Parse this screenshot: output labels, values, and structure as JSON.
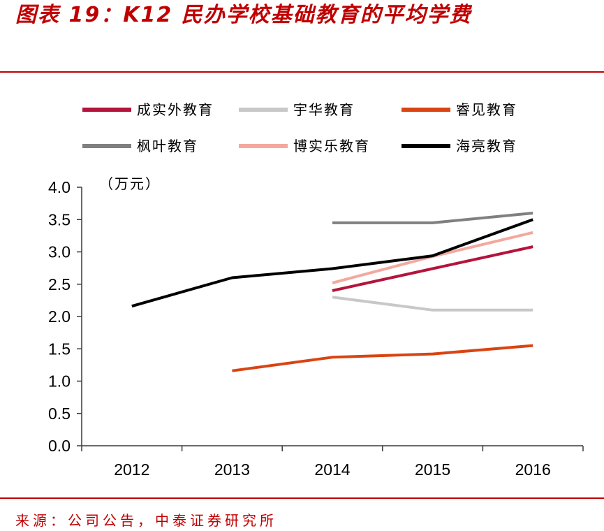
{
  "chart_data": {
    "type": "line",
    "title": "图表 19：K12 民办学校基础教育的平均学费",
    "ylabel": "（万元）",
    "categories": [
      "2012",
      "2013",
      "2014",
      "2015",
      "2016"
    ],
    "yticks": [
      "0.0",
      "0.5",
      "1.0",
      "1.5",
      "2.0",
      "2.5",
      "3.0",
      "3.5",
      "4.0"
    ],
    "ylim": [
      0,
      4.0
    ],
    "grid": false,
    "legend": "top",
    "series": [
      {
        "name": "成实外教育",
        "color": "#B4143C",
        "values": [
          null,
          null,
          2.4,
          2.74,
          3.08
        ]
      },
      {
        "name": "宇华教育",
        "color": "#C8C8C8",
        "values": [
          null,
          null,
          2.3,
          2.1,
          2.1
        ]
      },
      {
        "name": "睿见教育",
        "color": "#D94412",
        "values": [
          null,
          1.16,
          1.37,
          1.42,
          1.55
        ]
      },
      {
        "name": "枫叶教育",
        "color": "#808080",
        "values": [
          null,
          null,
          3.45,
          3.45,
          3.6
        ]
      },
      {
        "name": "博实乐教育",
        "color": "#F4A89E",
        "values": [
          null,
          null,
          2.52,
          2.93,
          3.3
        ]
      },
      {
        "name": "海亮教育",
        "color": "#000000",
        "values": [
          2.16,
          2.6,
          2.74,
          2.94,
          3.5
        ]
      }
    ]
  },
  "footer": {
    "source": "来源：公司公告，中泰证券研究所"
  },
  "theme": {
    "accent": "#C00000"
  }
}
